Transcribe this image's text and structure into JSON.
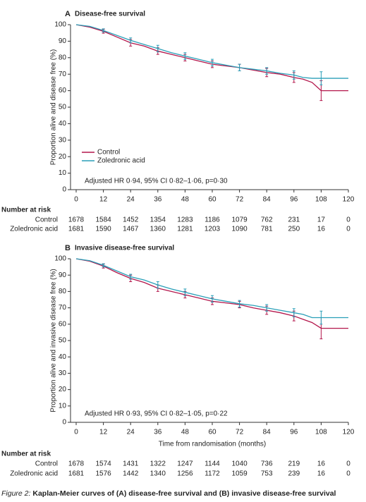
{
  "chart_data": [
    {
      "type": "line",
      "label": "A",
      "title": "Disease-free survival",
      "ylabel": "Proportion alive and disease free (%)",
      "annotation": "Adjusted HR 0·94, 95% CI 0·82–1·06, p=0·30",
      "legend": true,
      "x": [
        0,
        6,
        12,
        18,
        24,
        30,
        36,
        42,
        48,
        54,
        60,
        66,
        72,
        78,
        84,
        90,
        96,
        100,
        104,
        108,
        114,
        120
      ],
      "series": [
        {
          "name": "Control",
          "color": "#b3164b",
          "values": [
            100,
            98.5,
            96,
            92.5,
            89,
            87,
            84,
            82,
            80,
            78,
            76,
            75,
            74,
            72.5,
            71,
            70,
            68,
            67,
            65,
            60,
            60,
            60
          ],
          "errors": [
            null,
            null,
            1.2,
            null,
            2,
            null,
            2,
            null,
            2,
            null,
            2,
            null,
            2,
            null,
            2.5,
            null,
            3,
            null,
            null,
            6,
            null,
            null
          ]
        },
        {
          "name": "Zoledronic acid",
          "color": "#2a9fb8",
          "values": [
            100,
            99,
            96.5,
            93.5,
            90.5,
            88,
            85.5,
            83,
            81,
            79,
            77,
            75.5,
            74,
            73,
            72,
            70.5,
            69.5,
            68,
            67.5,
            67.5,
            67.5,
            67.5
          ],
          "errors": [
            null,
            null,
            1,
            null,
            1.5,
            null,
            2,
            null,
            2,
            null,
            2,
            null,
            2,
            null,
            2,
            null,
            2.5,
            null,
            null,
            4,
            null,
            null
          ]
        }
      ],
      "xlim": [
        0,
        120
      ],
      "xticks": [
        0,
        12,
        24,
        36,
        48,
        60,
        72,
        84,
        96,
        108,
        120
      ],
      "ylim": [
        0,
        100
      ],
      "yticks": [
        0,
        10,
        20,
        30,
        40,
        50,
        60,
        70,
        80,
        90,
        100
      ],
      "at_risk": {
        "title": "Number at risk",
        "rows": [
          {
            "name": "Control",
            "values": [
              1678,
              1584,
              1452,
              1354,
              1283,
              1186,
              1079,
              762,
              231,
              17,
              0
            ]
          },
          {
            "name": "Zoledronic acid",
            "values": [
              1681,
              1590,
              1467,
              1360,
              1281,
              1203,
              1090,
              781,
              250,
              16,
              0
            ]
          }
        ]
      }
    },
    {
      "type": "line",
      "label": "B",
      "title": "Invasive disease-free survival",
      "ylabel": "Proportion alive and invasive disease free (%)",
      "xlabel": "Time from randomisation (months)",
      "annotation": "Adjusted HR 0·93, 95% CI 0·82–1·05, p=0·22",
      "legend": false,
      "x": [
        0,
        6,
        12,
        18,
        24,
        30,
        36,
        42,
        48,
        54,
        60,
        66,
        72,
        78,
        84,
        90,
        96,
        100,
        104,
        108,
        114,
        120
      ],
      "series": [
        {
          "name": "Control",
          "color": "#b3164b",
          "values": [
            100,
            98.5,
            95.5,
            91.5,
            88,
            85.5,
            82,
            80,
            78,
            76,
            74,
            73,
            72,
            70,
            68.5,
            67,
            65,
            63,
            61,
            57.5,
            57.5,
            57.5
          ],
          "errors": [
            null,
            null,
            1.2,
            null,
            2,
            null,
            2,
            null,
            2,
            null,
            2,
            null,
            2,
            null,
            2.5,
            null,
            3,
            null,
            null,
            6.5,
            null,
            null
          ]
        },
        {
          "name": "Zoledronic acid",
          "color": "#2a9fb8",
          "values": [
            100,
            98.8,
            96,
            92.5,
            89,
            87,
            84,
            81.5,
            79.5,
            77.5,
            75.5,
            74,
            72.5,
            71.5,
            70,
            68.5,
            67,
            66,
            64,
            64,
            64,
            64
          ],
          "errors": [
            null,
            null,
            1,
            null,
            1.5,
            null,
            2,
            null,
            2,
            null,
            2,
            null,
            2,
            null,
            2,
            null,
            2.5,
            null,
            null,
            4,
            null,
            null
          ]
        }
      ],
      "xlim": [
        0,
        120
      ],
      "xticks": [
        0,
        12,
        24,
        36,
        48,
        60,
        72,
        84,
        96,
        108,
        120
      ],
      "ylim": [
        0,
        100
      ],
      "yticks": [
        0,
        10,
        20,
        30,
        40,
        50,
        60,
        70,
        80,
        90,
        100
      ],
      "at_risk": {
        "title": "Number at risk",
        "rows": [
          {
            "name": "Control",
            "values": [
              1678,
              1574,
              1431,
              1322,
              1247,
              1144,
              1040,
              736,
              219,
              16,
              0
            ]
          },
          {
            "name": "Zoledronic acid",
            "values": [
              1681,
              1576,
              1442,
              1340,
              1256,
              1172,
              1059,
              753,
              239,
              16,
              0
            ]
          }
        ]
      }
    }
  ],
  "figure_caption": {
    "label": "Figure 2:",
    "text": "Kaplan-Meier curves of (A) disease-free survival and (B) invasive disease-free survival"
  }
}
